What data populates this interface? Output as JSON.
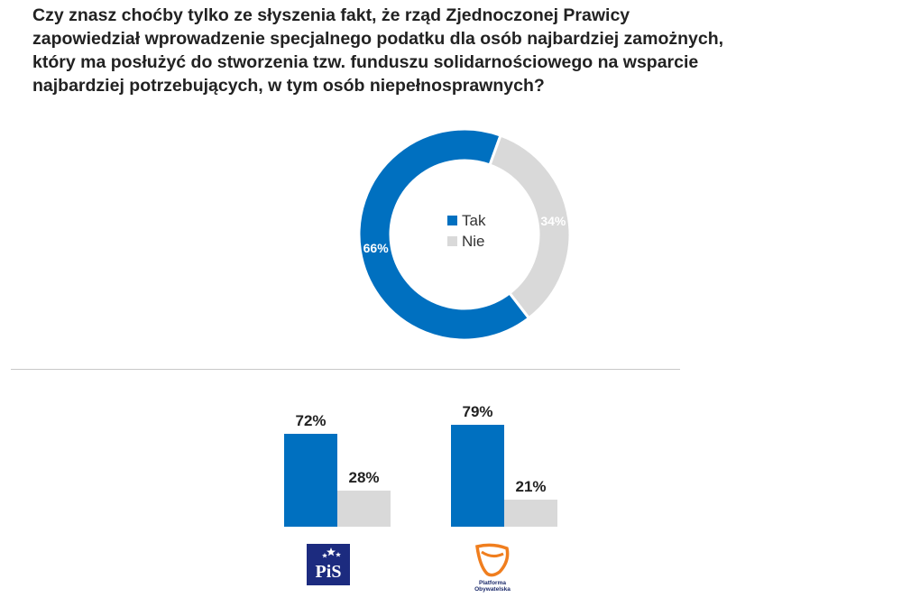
{
  "title_lines": [
    "Czy znasz choćby tylko ze słyszenia fakt, że rząd Zjednoczonej Prawicy",
    "zapowiedział wprowadzenie specjalnego podatku dla osób najbardziej zamożnych,",
    "który ma posłużyć do stworzenia tzw. funduszu solidarnościowego na wsparcie",
    "najbardziej potrzebujących, w tym osób niepełnosprawnych?"
  ],
  "colors": {
    "tak": "#0070c0",
    "nie": "#d9d9d9",
    "divider": "#c8c8c8"
  },
  "logos": {
    "pis": {
      "text": "PiS",
      "icon": "pis-logo"
    },
    "po": {
      "text": "Platforma Obywatelska",
      "icon": "po-logo"
    }
  },
  "chart_data": [
    {
      "type": "pie",
      "variant": "donut",
      "legend": [
        "Tak",
        "Nie"
      ],
      "legend_position": "center",
      "slices": [
        {
          "label": "Tak",
          "value": 66,
          "display": "66%"
        },
        {
          "label": "Nie",
          "value": 34,
          "display": "34%"
        }
      ]
    },
    {
      "type": "bar",
      "categories": [
        "PiS",
        "Platforma Obywatelska"
      ],
      "series": [
        {
          "name": "Tak",
          "values": [
            72,
            79
          ],
          "labels": [
            "72%",
            "79%"
          ]
        },
        {
          "name": "Nie",
          "values": [
            28,
            21
          ],
          "labels": [
            "28%",
            "21%"
          ]
        }
      ],
      "ylim": [
        0,
        100
      ],
      "grid": false
    }
  ]
}
